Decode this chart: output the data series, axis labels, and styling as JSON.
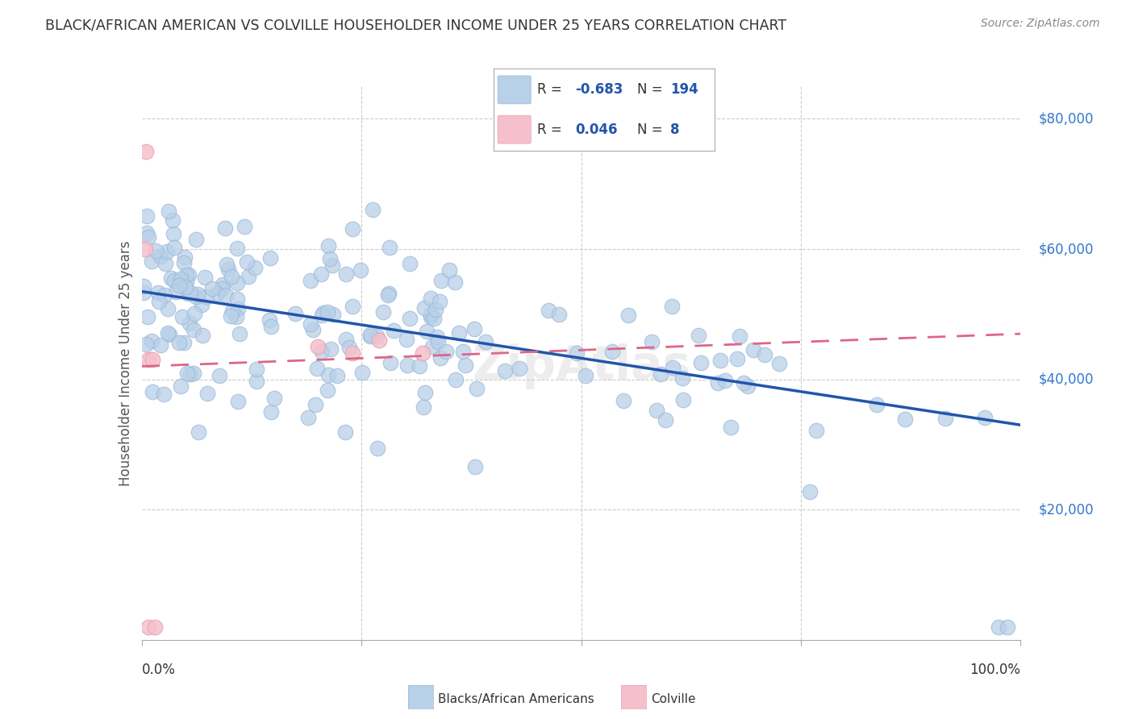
{
  "title": "BLACK/AFRICAN AMERICAN VS COLVILLE HOUSEHOLDER INCOME UNDER 25 YEARS CORRELATION CHART",
  "source": "Source: ZipAtlas.com",
  "ylabel": "Householder Income Under 25 years",
  "blue_R": "-0.683",
  "blue_N": "194",
  "pink_R": "0.046",
  "pink_N": "8",
  "blue_color": "#b8d0e8",
  "blue_edge_color": "#9ab8d8",
  "blue_line_color": "#2255aa",
  "pink_color": "#f5c0cc",
  "pink_edge_color": "#e8a0b0",
  "pink_line_color": "#dd6688",
  "pink_dash_color": "#dd6688",
  "background_color": "#ffffff",
  "grid_color": "#cccccc",
  "title_color": "#333333",
  "right_label_color": "#3377cc",
  "y_tick_vals": [
    20000,
    40000,
    60000,
    80000
  ],
  "y_tick_labels": [
    "$20,000",
    "$40,000",
    "$60,000",
    "$80,000"
  ],
  "blue_line_y0": 53500,
  "blue_line_y1": 33000,
  "pink_line_y0": 42000,
  "pink_line_y1": 47000,
  "xlim": [
    0,
    100
  ],
  "ylim": [
    0,
    85000
  ],
  "watermark": "ZipAtlas"
}
